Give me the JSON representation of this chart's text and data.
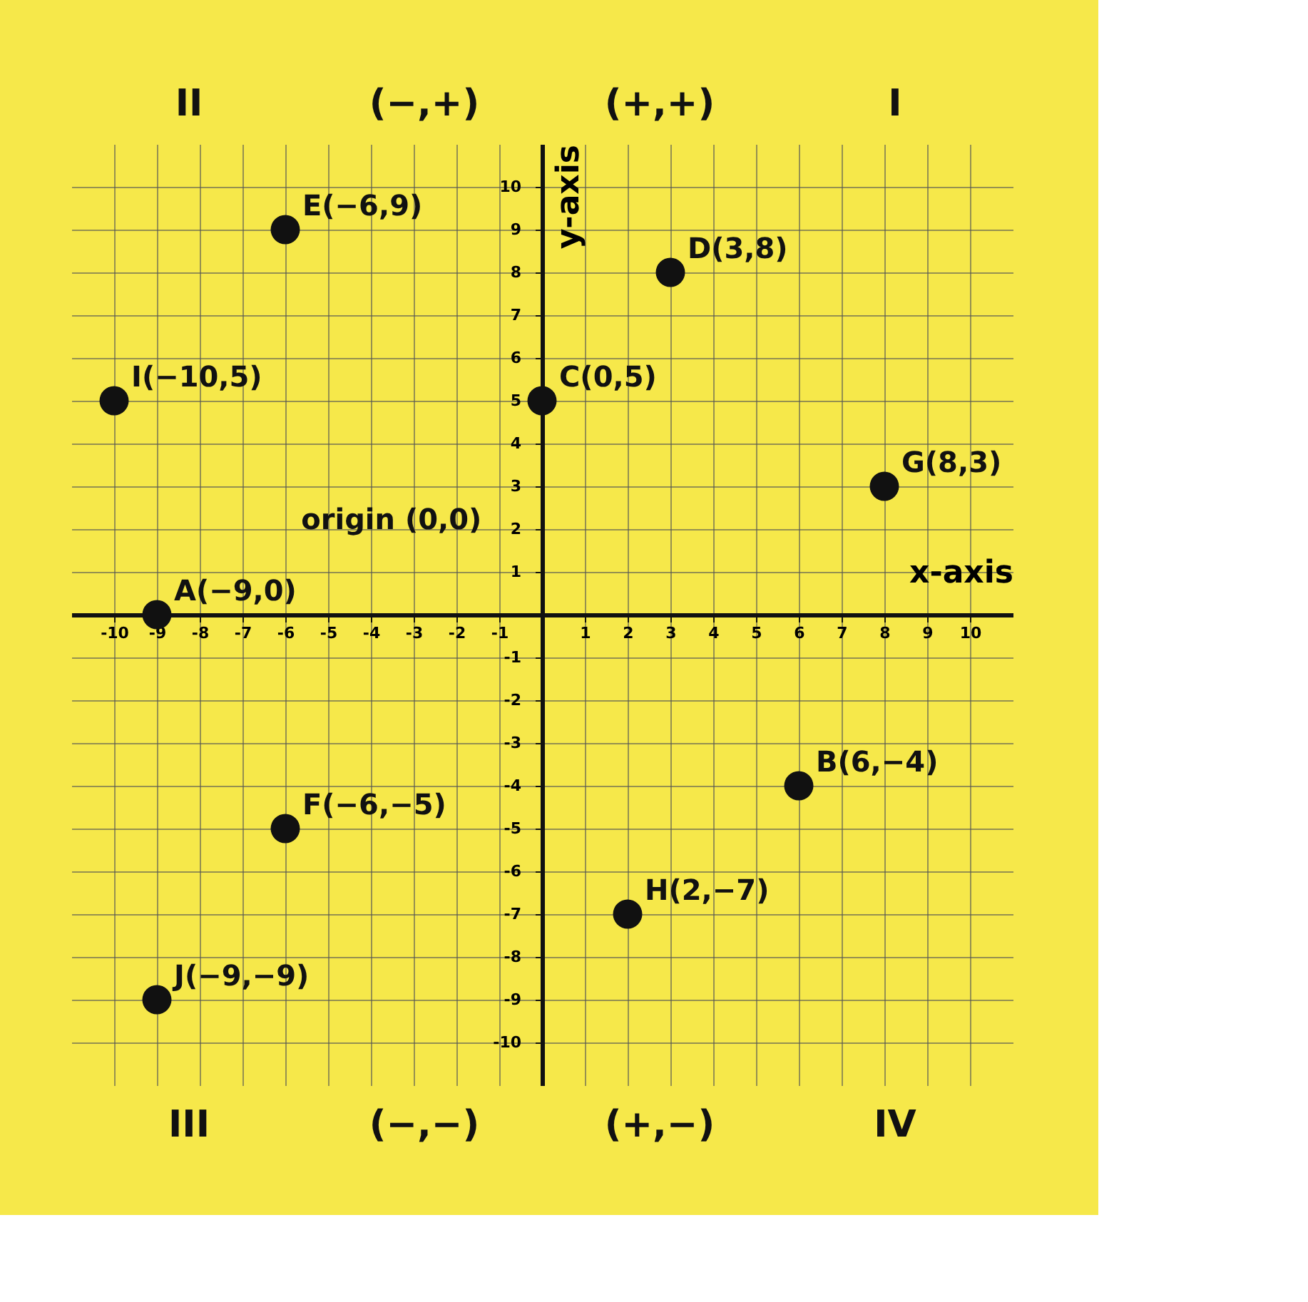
{
  "chart_data": {
    "type": "scatter",
    "x": [
      -9,
      6,
      0,
      3,
      -6,
      -6,
      8,
      2,
      -10,
      -9
    ],
    "values": [
      0,
      -4,
      5,
      8,
      9,
      -5,
      3,
      -7,
      5,
      -9
    ],
    "color": "#111111",
    "marker": "circle",
    "grid": true,
    "xlabel": "x-axis",
    "ylabel": "y-axis",
    "xlim": [
      -11,
      11
    ],
    "ylim": [
      -11,
      11
    ],
    "xticks": [
      -10,
      -9,
      -8,
      -7,
      -6,
      -5,
      -4,
      -3,
      -2,
      -1,
      {
        "value": 0,
        "label": null
      },
      1,
      2,
      3,
      4,
      5,
      6,
      7,
      8,
      9,
      10
    ],
    "yticks": [
      -10,
      -9,
      -8,
      -7,
      -6,
      -5,
      -4,
      -3,
      -2,
      -1,
      {
        "value": 0,
        "label": null
      },
      1,
      2,
      3,
      4,
      5,
      6,
      7,
      8,
      9,
      10
    ],
    "annotations": [
      "II",
      "(−,+)",
      "(+,+)",
      "I",
      "III",
      "(−,−)",
      "(+,−)",
      "IV",
      "origin (0,0)",
      {
        "text": "A(−9,0)",
        "x": -9,
        "y": 0
      },
      {
        "text": "B(6,−4)",
        "x": 6,
        "y": -4
      },
      {
        "text": "C(0,5)",
        "x": 0,
        "y": 5
      },
      {
        "text": "D(3,8)",
        "x": 3,
        "y": 8
      },
      {
        "text": "E(−6,9)",
        "x": -6,
        "y": 9
      },
      {
        "text": "F(−6,−5)",
        "x": -6,
        "y": -5
      },
      {
        "text": "G(8,3)",
        "x": 8,
        "y": 3
      },
      {
        "text": "H(2,−7)",
        "x": 2,
        "y": -7
      },
      {
        "text": "I(−10,5)",
        "x": -10,
        "y": 5
      },
      {
        "text": "J(−9,−9)",
        "x": -9,
        "y": -9
      }
    ]
  }
}
